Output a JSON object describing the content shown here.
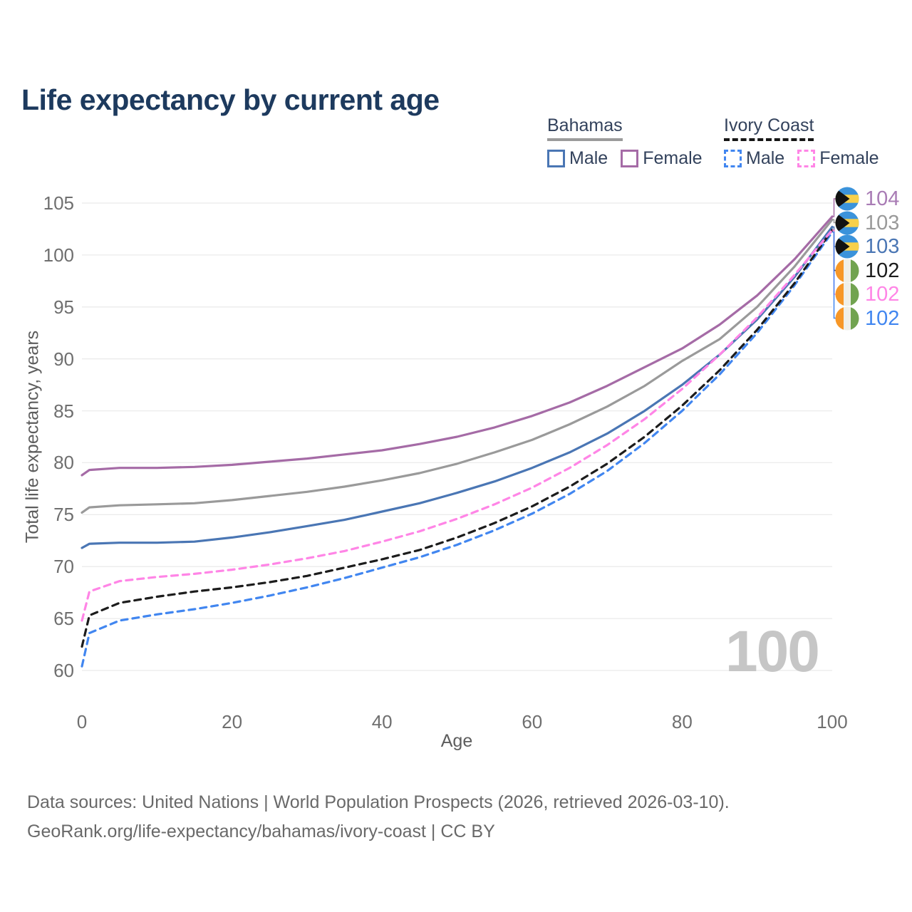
{
  "title": "Life expectancy by current age",
  "legend": {
    "groups": [
      {
        "title": "Bahamas",
        "line_style": "solid",
        "underline_color": "#9b9b9b",
        "items": [
          {
            "label": "Male",
            "color": "#4a76b4",
            "dashed": false
          },
          {
            "label": "Female",
            "color": "#a56ba6",
            "dashed": false
          }
        ]
      },
      {
        "title": "Ivory Coast",
        "line_style": "dashed",
        "underline_color": "#161616",
        "items": [
          {
            "label": "Male",
            "color": "#4186f0",
            "dashed": true
          },
          {
            "label": "Female",
            "color": "#ff85e6",
            "dashed": true
          }
        ]
      }
    ]
  },
  "chart_data": {
    "type": "line",
    "title": "Life expectancy by current age",
    "xlabel": "Age",
    "ylabel": "Total life expectancy, years",
    "xlim": [
      0,
      100
    ],
    "ylim": [
      60,
      105
    ],
    "xticks": [
      0,
      20,
      40,
      60,
      80,
      100
    ],
    "yticks": [
      60,
      65,
      70,
      75,
      80,
      85,
      90,
      95,
      100,
      105
    ],
    "grid": "horizontal-only",
    "gridline_color": "#ebebeb",
    "legend_position": "top-right",
    "x": [
      0,
      1,
      5,
      10,
      15,
      20,
      25,
      30,
      35,
      40,
      45,
      50,
      55,
      60,
      65,
      70,
      75,
      80,
      85,
      90,
      95,
      100
    ],
    "series": [
      {
        "id": "bahamas-female",
        "name": "Bahamas Female",
        "country": "Bahamas",
        "sex": "Female",
        "color": "#a56ba6",
        "dashed": false,
        "flag": "bahamas",
        "end_label": "104",
        "end_label_color": "#a97cb5",
        "values": [
          78.8,
          79.3,
          79.5,
          79.5,
          79.6,
          79.8,
          80.1,
          80.4,
          80.8,
          81.2,
          81.8,
          82.5,
          83.4,
          84.5,
          85.8,
          87.4,
          89.2,
          91.0,
          93.3,
          96.1,
          99.6,
          103.7
        ]
      },
      {
        "id": "bahamas-all",
        "name": "Bahamas (all)",
        "country": "Bahamas",
        "sex": "All",
        "color": "#9a9a9a",
        "dashed": false,
        "flag": "bahamas",
        "end_label": "103",
        "end_label_color": "#9a9a9a",
        "values": [
          75.2,
          75.7,
          75.9,
          76.0,
          76.1,
          76.4,
          76.8,
          77.2,
          77.7,
          78.3,
          79.0,
          79.9,
          81.0,
          82.2,
          83.7,
          85.4,
          87.4,
          89.8,
          91.9,
          95.0,
          98.9,
          103.4
        ]
      },
      {
        "id": "bahamas-male",
        "name": "Bahamas Male",
        "country": "Bahamas",
        "sex": "Male",
        "color": "#4a76b4",
        "dashed": false,
        "flag": "bahamas",
        "end_label": "103",
        "end_label_color": "#4a76b4",
        "values": [
          71.8,
          72.2,
          72.3,
          72.3,
          72.4,
          72.8,
          73.3,
          73.9,
          74.5,
          75.3,
          76.1,
          77.1,
          78.2,
          79.5,
          81.0,
          82.8,
          85.0,
          87.5,
          90.4,
          93.8,
          97.9,
          102.7
        ]
      },
      {
        "id": "ivory-coast-all",
        "name": "Ivory Coast (all)",
        "country": "Ivory Coast",
        "sex": "All",
        "color": "#1c1c1c",
        "dashed": true,
        "flag": "ivory-coast",
        "end_label": "102",
        "end_label_color": "#1c1c1c",
        "values": [
          62.3,
          65.3,
          66.5,
          67.1,
          67.6,
          68.0,
          68.5,
          69.1,
          69.9,
          70.7,
          71.6,
          72.8,
          74.2,
          75.8,
          77.7,
          79.9,
          82.5,
          85.5,
          88.9,
          92.8,
          97.3,
          102.4
        ]
      },
      {
        "id": "ivory-coast-female",
        "name": "Ivory Coast Female",
        "country": "Ivory Coast",
        "sex": "Female",
        "color": "#ff85e6",
        "dashed": true,
        "flag": "ivory-coast",
        "end_label": "102",
        "end_label_color": "#ff85e6",
        "values": [
          64.8,
          67.6,
          68.6,
          69.0,
          69.3,
          69.7,
          70.2,
          70.8,
          71.5,
          72.4,
          73.4,
          74.6,
          76.0,
          77.6,
          79.5,
          81.7,
          84.2,
          87.1,
          90.4,
          94.0,
          98.1,
          102.4
        ]
      },
      {
        "id": "ivory-coast-male",
        "name": "Ivory Coast Male",
        "country": "Ivory Coast",
        "sex": "Male",
        "color": "#4186f0",
        "dashed": true,
        "flag": "ivory-coast",
        "end_label": "102",
        "end_label_color": "#4186f0",
        "values": [
          60.4,
          63.6,
          64.8,
          65.4,
          65.9,
          66.5,
          67.2,
          68.0,
          68.9,
          69.9,
          70.9,
          72.1,
          73.5,
          75.1,
          77.0,
          79.2,
          81.9,
          85.0,
          88.5,
          92.5,
          97.1,
          102.2
        ]
      }
    ]
  },
  "watermark": "100",
  "footer": {
    "line1": "Data sources: United Nations | World Population Prospects (2026, retrieved 2026-03-10).",
    "line2": "GeoRank.org/life-expectancy/bahamas/ivory-coast | CC BY"
  },
  "flag_colors": {
    "bahamas": {
      "blue": "#3b93db",
      "yellow": "#f8d04a",
      "black": "#121212"
    },
    "ivory_coast": {
      "orange": "#f79727",
      "white": "#efefe9",
      "green": "#71a350"
    }
  }
}
